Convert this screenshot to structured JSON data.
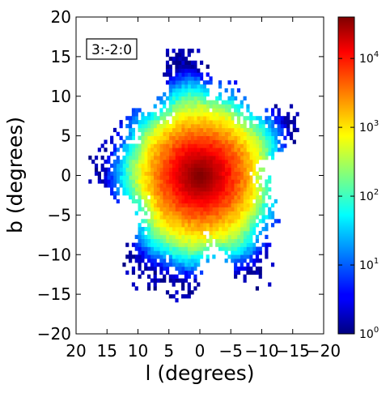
{
  "chart_data": {
    "type": "heatmap",
    "title": "",
    "xlabel": "l (degrees)",
    "ylabel": "b (degrees)",
    "xlim": [
      20,
      -20
    ],
    "ylim": [
      -20,
      20
    ],
    "x_inverted": true,
    "x_ticks": [
      20,
      15,
      10,
      5,
      0,
      -5,
      -10,
      -15,
      -20
    ],
    "x_tick_labels": [
      "20",
      "15",
      "10",
      "5",
      "0",
      "−5",
      "−10",
      "−15",
      "−20"
    ],
    "y_ticks": [
      20,
      15,
      10,
      5,
      0,
      -5,
      -10,
      -15,
      -20
    ],
    "y_tick_labels": [
      "20",
      "15",
      "10",
      "5",
      "0",
      "−5",
      "−10",
      "−15",
      "−20"
    ],
    "annotation": "3:-2:0",
    "annotation_position": "top-left",
    "grid": false,
    "colorbar": {
      "scale": "log",
      "colormap": "jet",
      "range": [
        1,
        40000
      ],
      "ticks": [
        1,
        10,
        100,
        1000,
        10000
      ],
      "tick_labels": [
        {
          "base": "10",
          "exp": "0"
        },
        {
          "base": "10",
          "exp": "1"
        },
        {
          "base": "10",
          "exp": "2"
        },
        {
          "base": "10",
          "exp": "3"
        },
        {
          "base": "10",
          "exp": "4"
        }
      ]
    },
    "distribution": {
      "center": [
        0,
        0
      ],
      "peak_count": 40000,
      "core_scale_l_deg": 4.8,
      "core_scale_b_deg": 3.9,
      "halo_scale_deg": 5.8,
      "extent_l_deg": [
        -14.5,
        19.5
      ],
      "extent_b_deg": [
        -13.5,
        14.5
      ],
      "bin_size_deg": 0.5
    }
  }
}
